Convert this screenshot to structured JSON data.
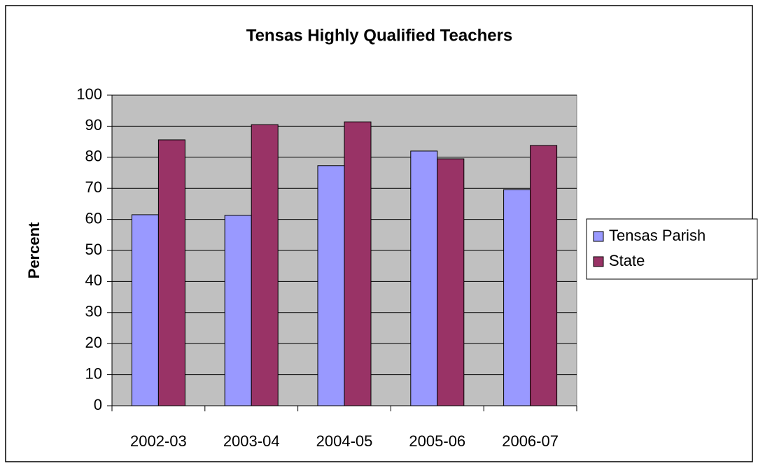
{
  "chart_data": {
    "type": "bar",
    "title": "Tensas Highly Qualified Teachers",
    "y_label": "Percent",
    "categories": [
      "2002-03",
      "2003-04",
      "2004-05",
      "2005-06",
      "2006-07"
    ],
    "series": [
      {
        "name": "Tensas Parish",
        "color": "#9999ff",
        "values": [
          61.5,
          61.3,
          77.3,
          82,
          69.6
        ]
      },
      {
        "name": "State",
        "color": "#993366",
        "values": [
          85.6,
          90.5,
          91.4,
          79.5,
          83.8
        ]
      }
    ],
    "ylim": [
      0,
      100
    ],
    "yticks": [
      0,
      10,
      20,
      30,
      40,
      50,
      60,
      70,
      80,
      90,
      100
    ],
    "grid": true,
    "legend": "right",
    "plot_background": "#c0c0c0"
  }
}
